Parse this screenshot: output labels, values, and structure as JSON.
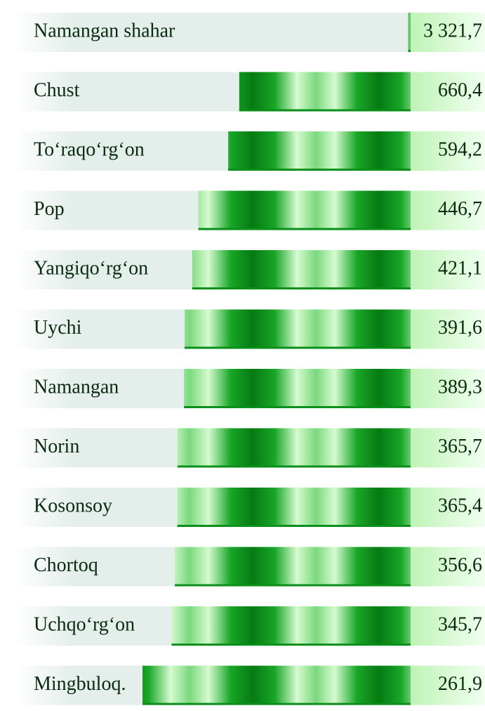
{
  "chart_data": {
    "type": "hbar",
    "categories": [
      "Namangan shahar",
      "Chust",
      "To‘raqo‘rg‘on",
      "Pop",
      "Yangiqo‘rg‘on",
      "Uychi",
      "Namangan",
      "Norin",
      "Kosonsoy",
      "Chortoq",
      "Uchqo‘rg‘on",
      "Mingbuloq."
    ],
    "values": [
      3321.7,
      660.4,
      594.2,
      446.7,
      421.1,
      391.6,
      389.3,
      365.7,
      365.4,
      356.6,
      345.7,
      261.9
    ],
    "value_labels": [
      "3 321,7",
      "660,4",
      "594,2",
      "446,7",
      "421,1",
      "391,6",
      "389,3",
      "365,7",
      "365,4",
      "356,6",
      "345,7",
      "261,9"
    ],
    "color": "#0a8f1a",
    "xlim": [
      150,
      3400
    ],
    "log_scale": true
  }
}
